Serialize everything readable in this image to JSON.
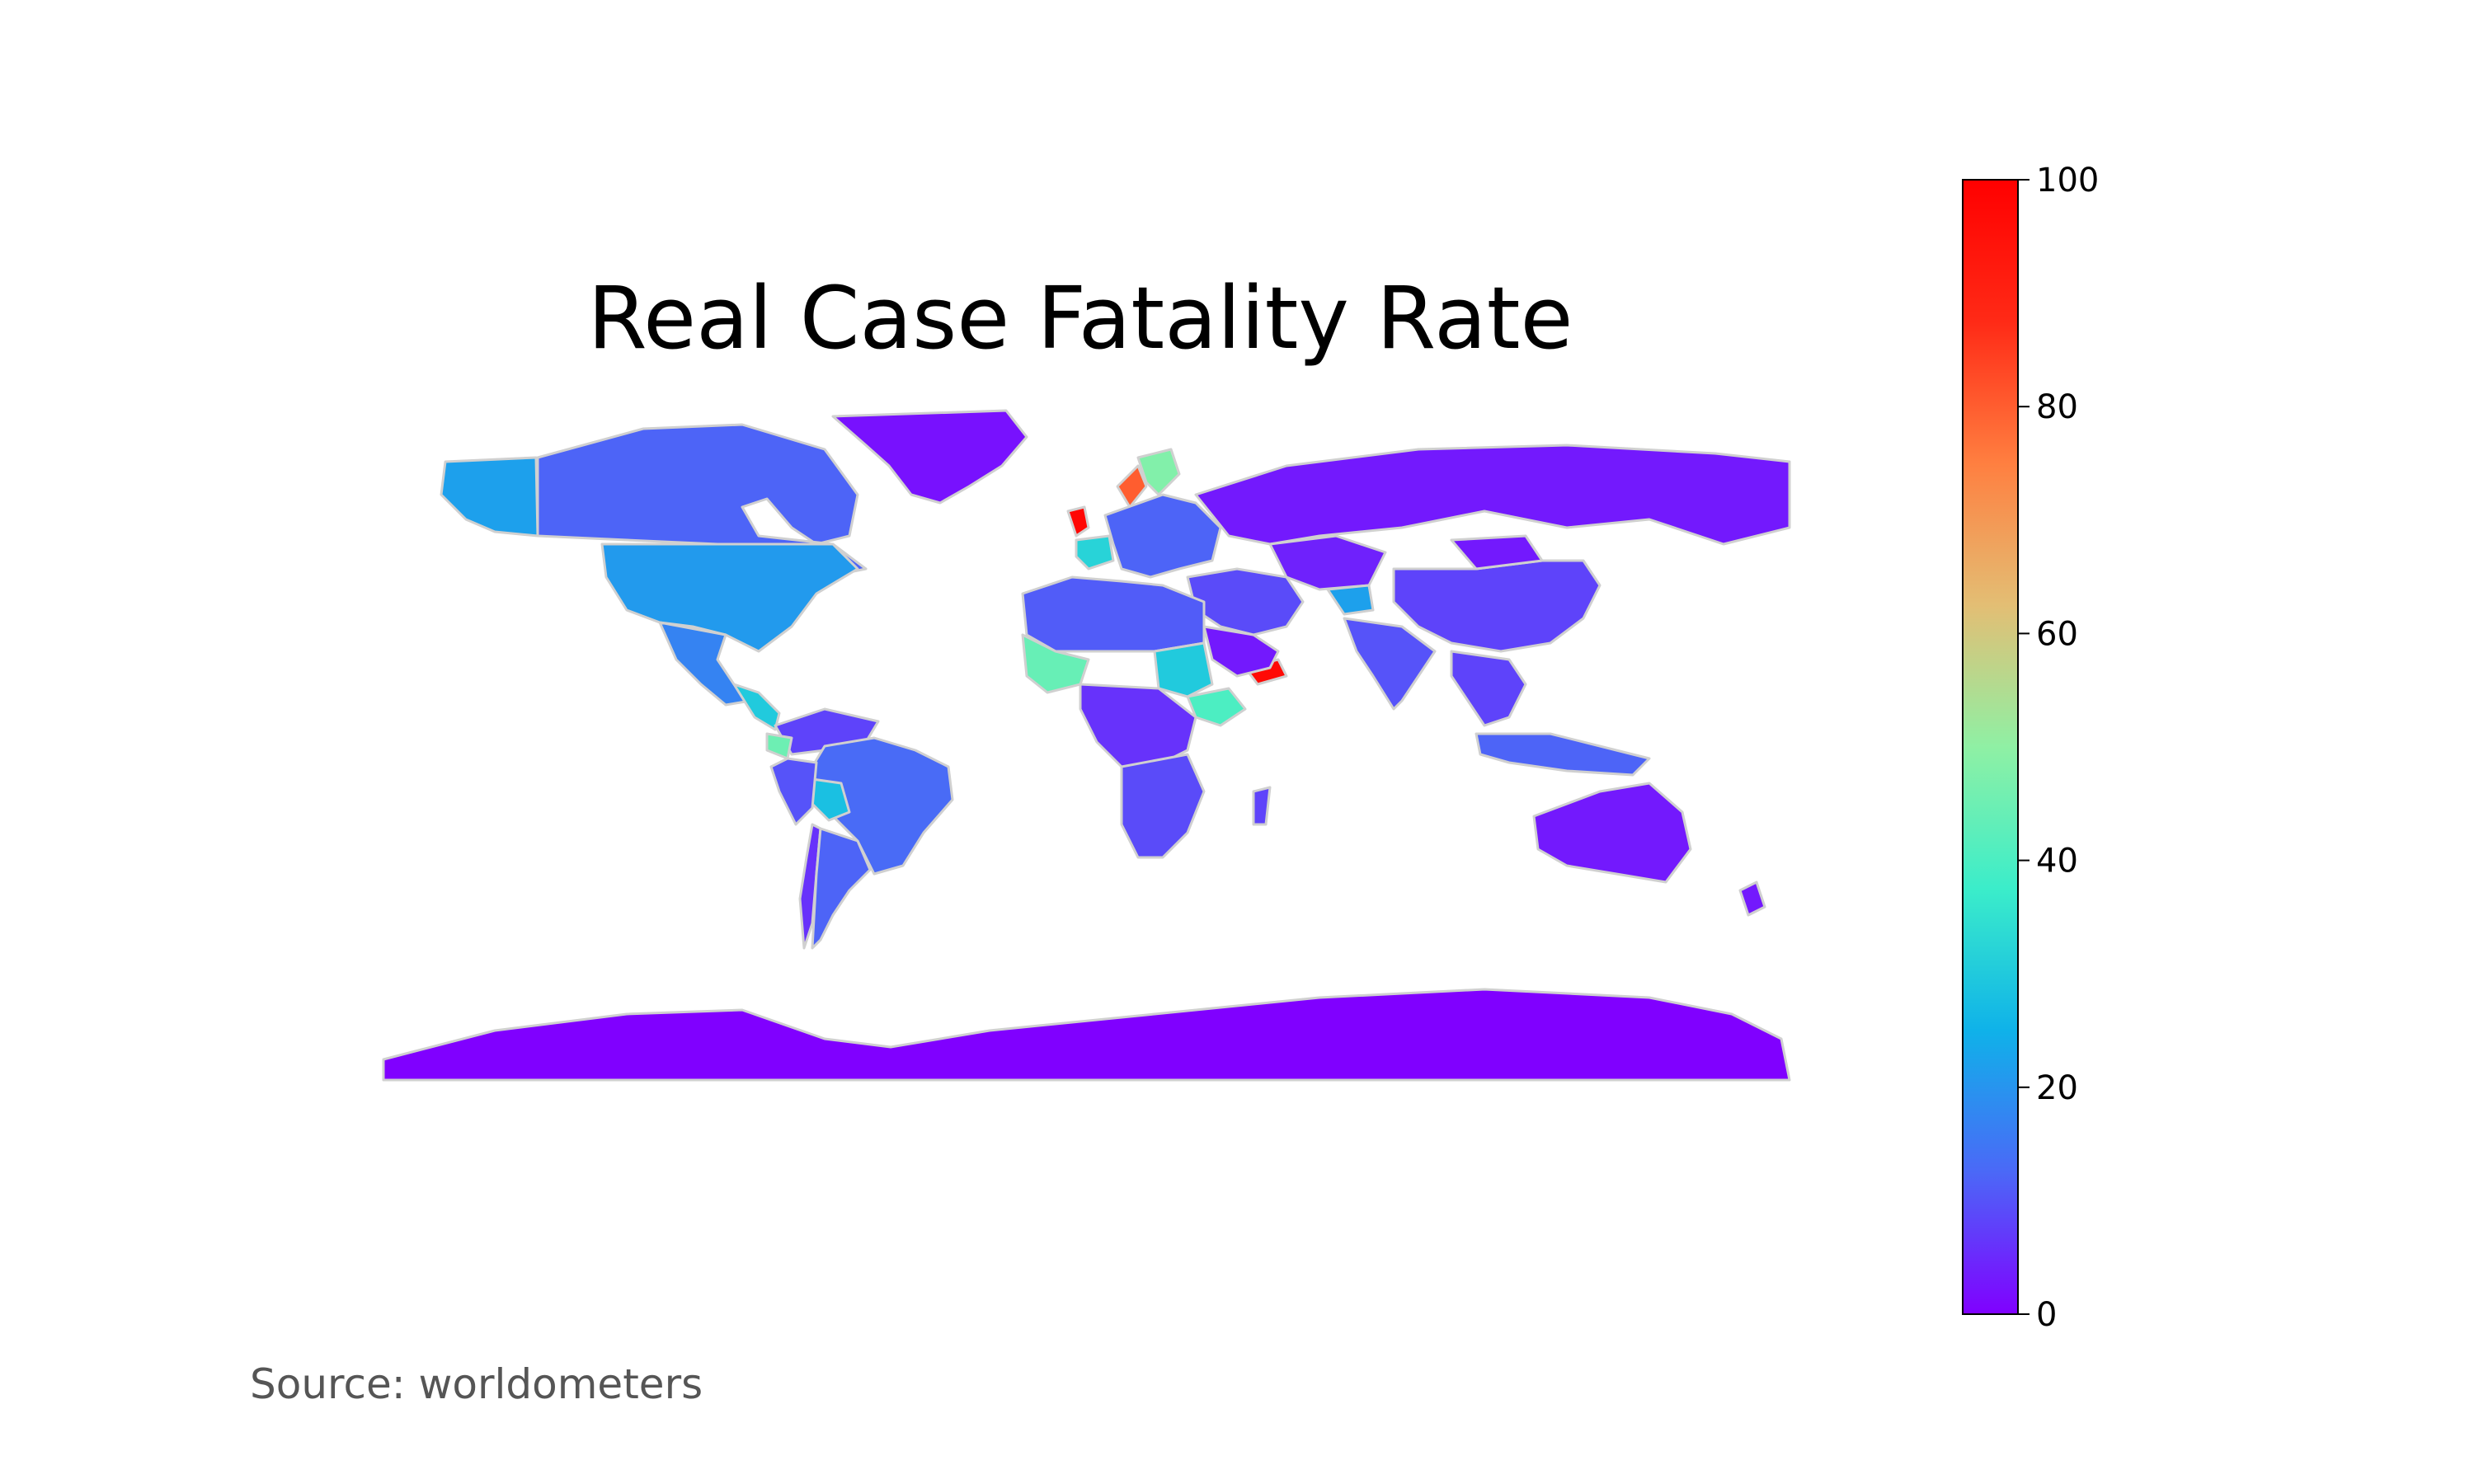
{
  "title": "Real Case Fatality Rate",
  "source": "Source: worldometers",
  "colors": {
    "land_border": "#d0d0d0",
    "no_data": "#c8c8c8",
    "scale": [
      "#8000ff",
      "#4b68f7",
      "#0fb2e9",
      "#3bedca",
      "#8ff0a4",
      "#e3be74",
      "#ff7f40",
      "#ff2a16",
      "#ff0000"
    ]
  },
  "colorbar": {
    "min": 0,
    "max": 100,
    "ticks": [
      {
        "value": 0,
        "label": "0"
      },
      {
        "value": 20,
        "label": "20"
      },
      {
        "value": 40,
        "label": "40"
      },
      {
        "value": 60,
        "label": "60"
      },
      {
        "value": 80,
        "label": "80"
      },
      {
        "value": 100,
        "label": "100"
      }
    ]
  },
  "chart_data": {
    "type": "choropleth",
    "title": "Real Case Fatality Rate",
    "value_range": [
      0,
      100
    ],
    "colormap": "rainbow",
    "regions": [
      {
        "region": "Greenland",
        "value": 2
      },
      {
        "region": "Alaska",
        "value": 22
      },
      {
        "region": "Canada",
        "value": 12
      },
      {
        "region": "United States",
        "value": 21
      },
      {
        "region": "Mexico",
        "value": 17
      },
      {
        "region": "Central America",
        "value": 30
      },
      {
        "region": "Colombia/Venezuela",
        "value": 8
      },
      {
        "region": "Ecuador",
        "value": 45
      },
      {
        "region": "Brazil",
        "value": 13
      },
      {
        "region": "Bolivia",
        "value": 28
      },
      {
        "region": "Peru",
        "value": 10
      },
      {
        "region": "Chile",
        "value": 6
      },
      {
        "region": "Argentina",
        "value": 12
      },
      {
        "region": "United Kingdom",
        "value": 98
      },
      {
        "region": "France",
        "value": 32
      },
      {
        "region": "Sweden",
        "value": 48
      },
      {
        "region": "Norway",
        "value": 80
      },
      {
        "region": "Europe",
        "value": 12
      },
      {
        "region": "Russia",
        "value": 3
      },
      {
        "region": "China",
        "value": 8
      },
      {
        "region": "Mongolia",
        "value": 3
      },
      {
        "region": "Kazakhstan",
        "value": 4
      },
      {
        "region": "Yemen",
        "value": 97
      },
      {
        "region": "Saudi Arabia",
        "value": 3
      },
      {
        "region": "Middle East",
        "value": 9
      },
      {
        "region": "Afghanistan",
        "value": 22
      },
      {
        "region": "India",
        "value": 10
      },
      {
        "region": "Southeast Asia",
        "value": 8
      },
      {
        "region": "Indonesia",
        "value": 12
      },
      {
        "region": "Australia",
        "value": 3
      },
      {
        "region": "New Zealand",
        "value": 3
      },
      {
        "region": "North Africa",
        "value": 11
      },
      {
        "region": "West Africa",
        "value": 44
      },
      {
        "region": "Sudan",
        "value": 30
      },
      {
        "region": "Ethiopia",
        "value": 40
      },
      {
        "region": "Central Africa",
        "value": 6
      },
      {
        "region": "Southern Africa",
        "value": 9
      },
      {
        "region": "Madagascar",
        "value": 8
      },
      {
        "region": "Antarctica",
        "value": 0
      }
    ]
  }
}
